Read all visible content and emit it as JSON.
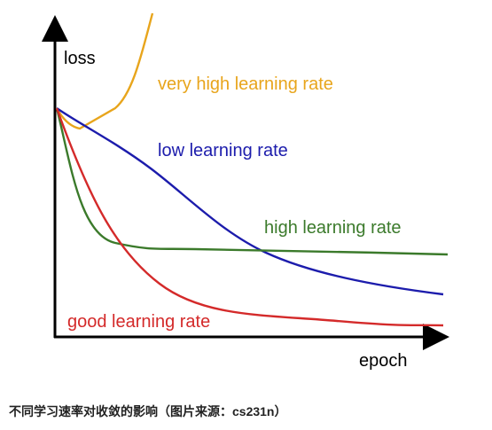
{
  "diagram": {
    "y_axis_label": "loss",
    "x_axis_label": "epoch",
    "curves": [
      {
        "label": "very high learning rate"
      },
      {
        "label": "low learning rate"
      },
      {
        "label": "high learning rate"
      },
      {
        "label": "good learning rate"
      }
    ],
    "caption": "不同学习速率对收敛的影响（图片来源：cs231n）"
  }
}
